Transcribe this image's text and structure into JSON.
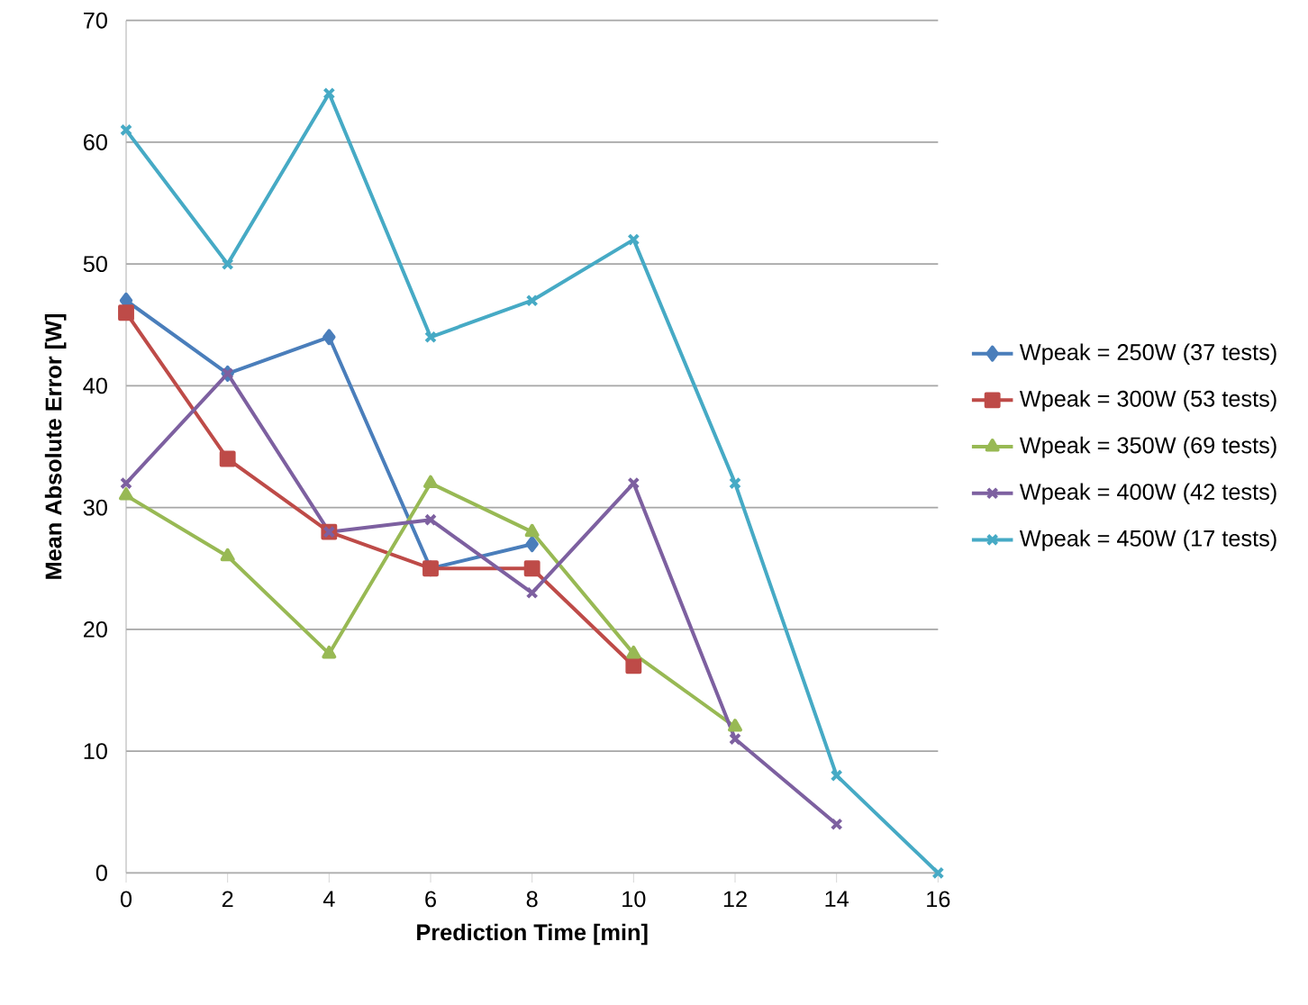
{
  "chart_data": {
    "type": "line",
    "xlabel": "Prediction Time [min]",
    "ylabel": "Mean Absolute  Error [W]",
    "xlim": [
      0,
      16
    ],
    "xticks": [
      0,
      2,
      4,
      6,
      8,
      10,
      12,
      14,
      16
    ],
    "ylim": [
      0,
      70
    ],
    "yticks": [
      0,
      10,
      20,
      30,
      40,
      50,
      60,
      70
    ],
    "grid": "y",
    "legend": "right",
    "series": [
      {
        "name": "Wpeak = 250W (37 tests)",
        "color": "#4a7ebb",
        "marker": "diamond",
        "x": [
          0,
          2,
          4,
          6,
          8
        ],
        "values": [
          47,
          41,
          44,
          25,
          27
        ]
      },
      {
        "name": "Wpeak = 300W (53 tests)",
        "color": "#be4b48",
        "marker": "square",
        "x": [
          0,
          2,
          4,
          6,
          8,
          10
        ],
        "values": [
          46,
          34,
          28,
          25,
          25,
          17
        ]
      },
      {
        "name": "Wpeak = 350W  (69 tests)",
        "color": "#98b954",
        "marker": "triangle",
        "x": [
          0,
          2,
          4,
          6,
          8,
          10,
          12
        ],
        "values": [
          31,
          26,
          18,
          32,
          28,
          18,
          12
        ]
      },
      {
        "name": "Wpeak = 400W (42 tests)",
        "color": "#7d60a0",
        "marker": "cross",
        "x": [
          0,
          2,
          4,
          6,
          8,
          10,
          12,
          14
        ],
        "values": [
          32,
          41,
          28,
          29,
          23,
          32,
          11,
          4
        ]
      },
      {
        "name": "Wpeak = 450W (17 tests)",
        "color": "#46aac5",
        "marker": "cross",
        "x": [
          0,
          2,
          4,
          6,
          8,
          10,
          12,
          14,
          16
        ],
        "values": [
          61,
          50,
          64,
          44,
          47,
          52,
          32,
          8,
          0
        ]
      }
    ]
  }
}
